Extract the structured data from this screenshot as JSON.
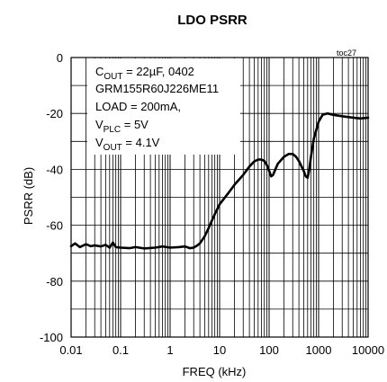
{
  "chart_data": {
    "type": "line",
    "title": "LDO PSRR",
    "tag": "toc27",
    "xlabel": "FREQ (kHz)",
    "ylabel": "PSRR (dB)",
    "x_scale": "log",
    "xlim": [
      0.01,
      10000
    ],
    "ylim": [
      -100,
      0
    ],
    "x_ticks": [
      "0.01",
      "0.1",
      "1",
      "10",
      "100",
      "1000",
      "10000"
    ],
    "y_ticks": [
      "0",
      "-20",
      "-40",
      "-60",
      "-80",
      "-100"
    ],
    "grid": true,
    "annotation": {
      "line1_main": "C",
      "line1_sub": "OUT",
      "line1_rest": " = 22µF, 0402",
      "line2": "GRM155R60J226ME11",
      "line3": "LOAD = 200mA,",
      "line4_main": "V",
      "line4_sub": "PLC",
      "line4_rest": " = 5V",
      "line5_main": "V",
      "line5_sub": "OUT",
      "line5_rest": " = 4.1V"
    },
    "series": [
      {
        "x": [
          0.01,
          0.012,
          0.015,
          0.02,
          0.025,
          0.03,
          0.04,
          0.05,
          0.06,
          0.07,
          0.08,
          0.1,
          0.15,
          0.2,
          0.3,
          0.5,
          0.7,
          1,
          1.5,
          2,
          2.5,
          3,
          3.5,
          4,
          5,
          6,
          8,
          10,
          15,
          20,
          30,
          40,
          50,
          60,
          70,
          80,
          90,
          100,
          110,
          120,
          130,
          150,
          200,
          250,
          300,
          350,
          400,
          500,
          550,
          600,
          650,
          700,
          800,
          1000,
          1200,
          1500,
          2000,
          3000,
          5000,
          7000,
          10000
        ],
        "y": [
          -67.5,
          -66.5,
          -67.8,
          -66.8,
          -67.5,
          -67.2,
          -67.6,
          -67.0,
          -68.0,
          -66.2,
          -67.8,
          -68.0,
          -68.2,
          -67.8,
          -68.3,
          -68.0,
          -67.6,
          -68.0,
          -67.8,
          -67.6,
          -68.2,
          -68.0,
          -67.3,
          -66.5,
          -64.0,
          -61.0,
          -56.0,
          -52.5,
          -48.5,
          -45.5,
          -42.0,
          -39.0,
          -37.2,
          -36.5,
          -36.5,
          -37.0,
          -38.5,
          -40.5,
          -42.5,
          -42.0,
          -40.5,
          -38.0,
          -35.5,
          -34.5,
          -34.5,
          -35.5,
          -37.0,
          -40.5,
          -42.5,
          -43.0,
          -40.0,
          -35.5,
          -29.0,
          -23.0,
          -20.5,
          -20.0,
          -20.5,
          -21.0,
          -21.5,
          -21.8,
          -21.5
        ]
      }
    ]
  }
}
